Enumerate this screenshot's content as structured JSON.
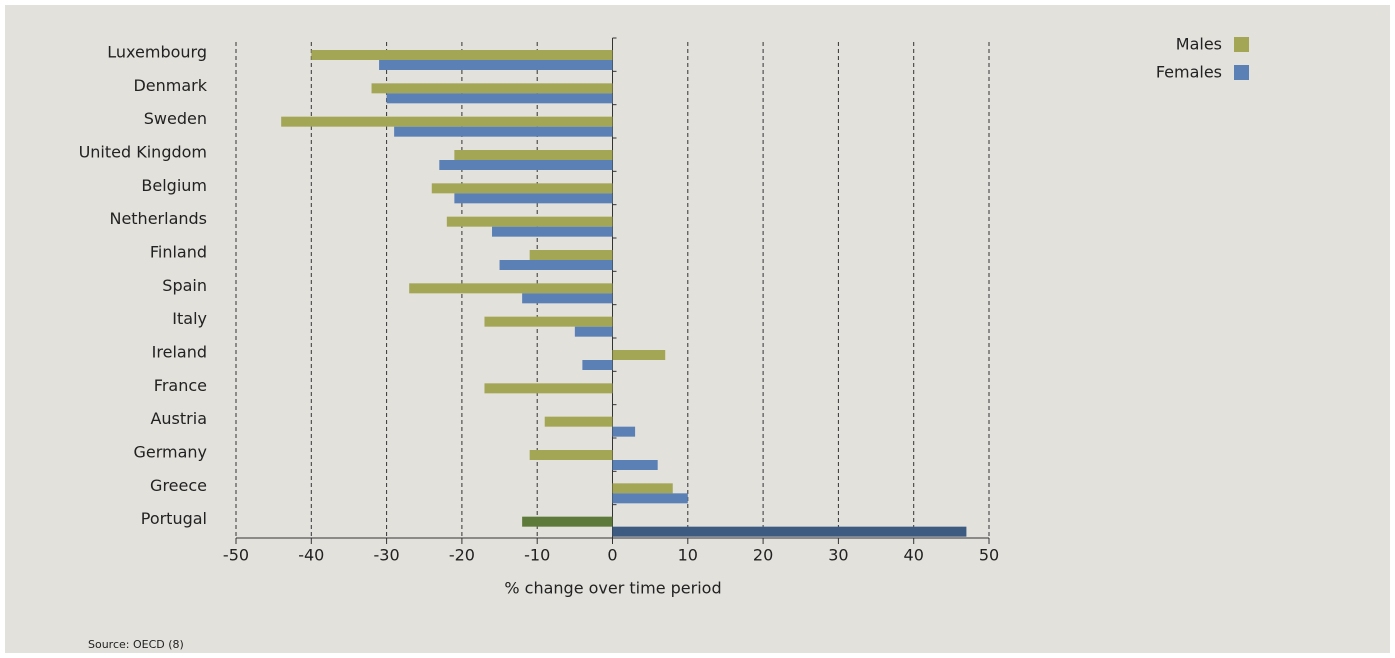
{
  "chart_data": {
    "type": "hbar",
    "x_label": "% change over time period",
    "source": "Source: OECD (8)",
    "categories": [
      "Luxembourg",
      "Denmark",
      "Sweden",
      "United Kingdom",
      "Belgium",
      "Netherlands",
      "Finland",
      "Spain",
      "Italy",
      "Ireland",
      "France",
      "Austria",
      "Germany",
      "Greece",
      "Portugal"
    ],
    "series": [
      {
        "name": "Males",
        "color": "#a3a655",
        "colors": [
          "#a3a655",
          "#a3a655",
          "#a3a655",
          "#a3a655",
          "#a3a655",
          "#a3a655",
          "#a3a655",
          "#a3a655",
          "#a3a655",
          "#a3a655",
          "#a3a655",
          "#a3a655",
          "#a3a655",
          "#a3a655",
          "#5e7a3a"
        ],
        "values": [
          -40,
          -32,
          -44,
          -21,
          -24,
          -22,
          -11,
          -27,
          -17,
          7,
          -17,
          -9,
          -11,
          8,
          -12
        ]
      },
      {
        "name": "Females",
        "color": "#5b80b5",
        "colors": [
          "#5b80b5",
          "#5b80b5",
          "#5b80b5",
          "#5b80b5",
          "#5b80b5",
          "#5b80b5",
          "#5b80b5",
          "#5b80b5",
          "#5b80b5",
          "#5b80b5",
          "#5b80b5",
          "#5b80b5",
          "#5b80b5",
          "#5b80b5",
          "#3d5a80"
        ],
        "values": [
          -31,
          -30,
          -29,
          -23,
          -21,
          -16,
          -15,
          -12,
          -5,
          -4,
          0,
          3,
          6,
          10,
          47
        ]
      }
    ],
    "xlim": [
      -50,
      50
    ],
    "xticks": [
      -50,
      -40,
      -30,
      -20,
      -10,
      0,
      10,
      20,
      30,
      40,
      50
    ],
    "grid": true,
    "legend": "top-right"
  }
}
